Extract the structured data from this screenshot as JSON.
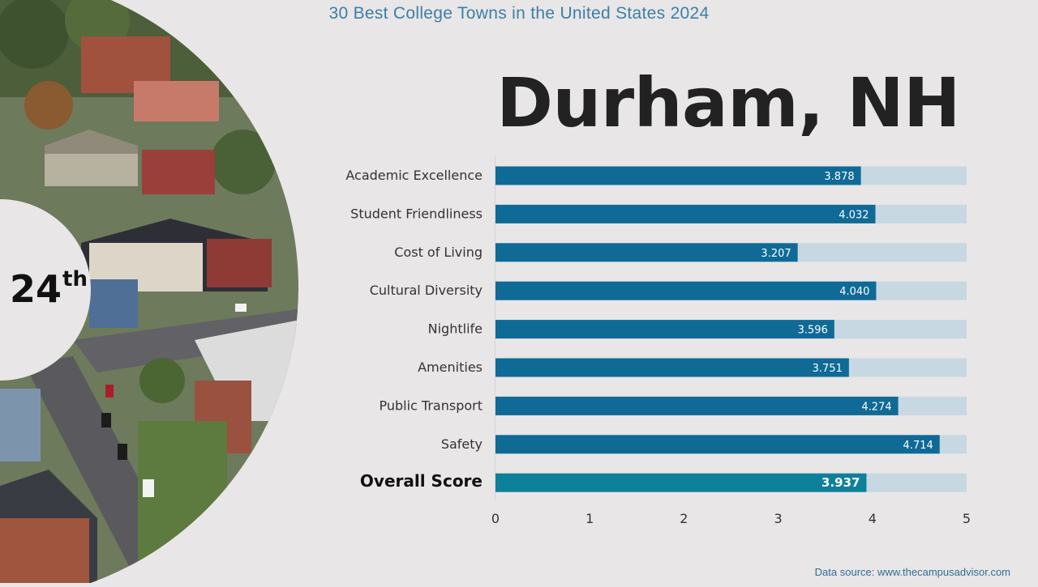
{
  "header": {
    "title": "30 Best College Towns in the United States 2024"
  },
  "town": {
    "name": "Durham, NH",
    "rank_number": "24",
    "rank_suffix": "th"
  },
  "colors": {
    "bar": "#0f6a96",
    "overall_bar": "#0e8099",
    "bar_track": "#c7d8e2",
    "title": "#3d7fa6"
  },
  "chart_data": {
    "type": "bar",
    "orientation": "horizontal",
    "categories": [
      "Academic Excellence",
      "Student Friendliness",
      "Cost of Living",
      "Cultural Diversity",
      "Nightlife",
      "Amenities",
      "Public Transport",
      "Safety",
      "Overall Score"
    ],
    "values": [
      3.878,
      4.032,
      3.207,
      4.04,
      3.596,
      3.751,
      4.274,
      4.714,
      3.937
    ],
    "value_labels": [
      "3.878",
      "4.032",
      "3.207",
      "4.040",
      "3.596",
      "3.751",
      "4.274",
      "4.714",
      "3.937"
    ],
    "highlight_category": "Overall Score",
    "xlim": [
      0,
      5
    ],
    "xticks": [
      "0",
      "1",
      "2",
      "3",
      "4",
      "5"
    ],
    "grid": false,
    "legend": "none"
  },
  "footer": {
    "source": "Data source: www.thecampusadvisor.com"
  }
}
